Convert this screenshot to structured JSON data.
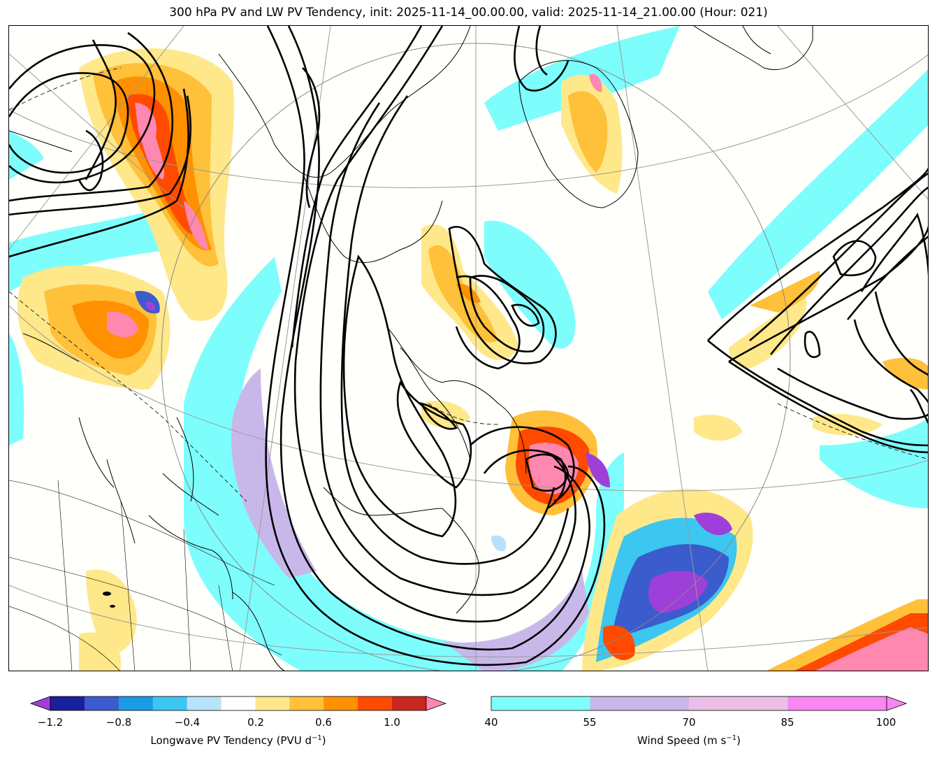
{
  "title": "300 hPa PV and LW PV Tendency, init: 2025-11-14_00.00.00, valid: 2025-11-14_21.00.00 (Hour: 021)",
  "map": {
    "description_layers": [
      "coastlines",
      "country-borders",
      "state-borders",
      "lat-lon-grid",
      "pv-contours",
      "wind-speed-fill",
      "pv-tendency-fill"
    ]
  },
  "pv_colorbar": {
    "label": "Longwave PV Tendency (PVU d$^{-1}$)",
    "label_text": "Longwave PV Tendency (PVU d",
    "label_sup": "−1",
    "label_close": ")",
    "ticks": [
      "−1.2",
      "−0.8",
      "−0.4",
      "0.2",
      "0.6",
      "1.0"
    ],
    "colors": [
      "#1a1f9c",
      "#3a5ccc",
      "#1a9be6",
      "#3cc6f0",
      "#b8e2fa",
      "#ffffff",
      "#ffe88a",
      "#ffc03a",
      "#ff9000",
      "#ff4a00",
      "#c8281e"
    ],
    "under_color": "#9f3fd9",
    "over_color": "#ff88b0"
  },
  "wind_colorbar": {
    "label_text": "Wind Speed (m s",
    "label_sup": "−1",
    "label_close": ")",
    "ticks": [
      "40",
      "55",
      "70",
      "85",
      "100"
    ],
    "colors": [
      "#7efdfd",
      "#c8b8ea",
      "#ecbfe6",
      "#f986f5"
    ],
    "over_color": "#f986f5"
  }
}
